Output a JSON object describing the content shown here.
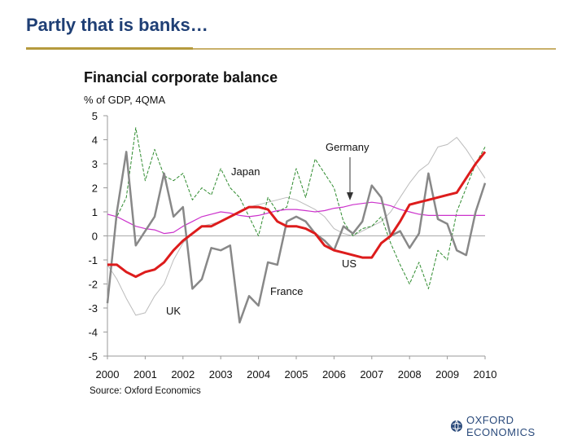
{
  "slide": {
    "title": "Partly that is banks…",
    "logo_text": "OXFORD ECONOMICS"
  },
  "colors": {
    "title": "#1f3f75",
    "rule": "#b59a3e",
    "us": "#dd1c1c",
    "japan": "#2e8b2e",
    "germany": "#cc33cc",
    "uk": "#bbbbbb",
    "france": "#888888"
  },
  "chart_data": {
    "type": "line",
    "title": "Financial corporate balance",
    "subtitle": "% of GDP, 4QMA",
    "source": "Source: Oxford Economics",
    "xlabel": "",
    "ylabel": "",
    "xlim": [
      2000,
      2010
    ],
    "ylim": [
      -5,
      5
    ],
    "x_ticks": [
      "2000",
      "2001",
      "2002",
      "2003",
      "2004",
      "2005",
      "2006",
      "2007",
      "2008",
      "2009",
      "2010"
    ],
    "y_ticks": [
      "5",
      "4",
      "3",
      "2",
      "1",
      "0",
      "-1",
      "-2",
      "-3",
      "-4",
      "-5"
    ],
    "legend": "inline labels",
    "grid": false,
    "series": [
      {
        "name": "UK",
        "color": "#bbbbbb",
        "x": [
          2000.0,
          2000.25,
          2000.5,
          2000.75,
          2001.0,
          2001.25,
          2001.5,
          2001.75,
          2002.0,
          2002.25,
          2002.5,
          2002.75,
          2003.0,
          2003.25,
          2003.5,
          2003.75,
          2004.0,
          2004.25,
          2004.5,
          2004.75,
          2005.0,
          2005.25,
          2005.5,
          2005.75,
          2006.0,
          2006.25,
          2006.5,
          2006.75,
          2007.0,
          2007.25,
          2007.5,
          2007.75,
          2008.0,
          2008.25,
          2008.5,
          2008.75,
          2009.0,
          2009.25,
          2009.5,
          2009.75,
          2010.0
        ],
        "y": [
          -1.2,
          -1.8,
          -2.6,
          -3.3,
          -3.2,
          -2.5,
          -2.0,
          -1.0,
          -0.3,
          0.1,
          0.4,
          0.5,
          0.6,
          0.8,
          1.0,
          1.2,
          1.3,
          1.4,
          1.5,
          1.6,
          1.5,
          1.3,
          1.1,
          0.8,
          0.3,
          0.1,
          0.0,
          0.2,
          0.4,
          0.6,
          1.0,
          1.6,
          2.2,
          2.7,
          3.0,
          3.7,
          3.8,
          4.1,
          3.6,
          3.0,
          2.4
        ]
      },
      {
        "name": "Japan",
        "color": "#2e8b2e",
        "x": [
          2000.0,
          2000.25,
          2000.5,
          2000.75,
          2001.0,
          2001.25,
          2001.5,
          2001.75,
          2002.0,
          2002.25,
          2002.5,
          2002.75,
          2003.0,
          2003.25,
          2003.5,
          2003.75,
          2004.0,
          2004.25,
          2004.5,
          2004.75,
          2005.0,
          2005.25,
          2005.5,
          2005.75,
          2006.0,
          2006.25,
          2006.5,
          2006.75,
          2007.0,
          2007.25,
          2007.5,
          2007.75,
          2008.0,
          2008.25,
          2008.5,
          2008.75,
          2009.0,
          2009.25,
          2009.5,
          2009.75,
          2010.0
        ],
        "y": [
          -2.8,
          0.8,
          1.6,
          4.5,
          2.3,
          3.6,
          2.5,
          2.3,
          2.6,
          1.5,
          2.0,
          1.7,
          2.8,
          2.0,
          1.6,
          0.8,
          0.0,
          1.6,
          1.0,
          1.2,
          2.8,
          1.6,
          3.2,
          2.6,
          2.0,
          0.6,
          0.0,
          0.3,
          0.4,
          0.8,
          -0.3,
          -1.2,
          -2.0,
          -1.1,
          -2.2,
          -0.6,
          -1.0,
          1.0,
          2.0,
          3.0,
          3.7
        ]
      },
      {
        "name": "Germany",
        "color": "#cc33cc",
        "x": [
          2000.0,
          2000.25,
          2000.5,
          2000.75,
          2001.0,
          2001.25,
          2001.5,
          2001.75,
          2002.0,
          2002.25,
          2002.5,
          2002.75,
          2003.0,
          2003.25,
          2003.5,
          2003.75,
          2004.0,
          2004.25,
          2004.5,
          2004.75,
          2005.0,
          2005.25,
          2005.5,
          2005.75,
          2006.0,
          2006.25,
          2006.5,
          2006.75,
          2007.0,
          2007.25,
          2007.5,
          2007.75,
          2008.0,
          2008.25,
          2008.5,
          2008.75,
          2009.0,
          2009.25,
          2009.5,
          2009.75,
          2010.0
        ],
        "y": [
          0.9,
          0.8,
          0.6,
          0.4,
          0.3,
          0.25,
          0.1,
          0.15,
          0.4,
          0.6,
          0.8,
          0.9,
          1.0,
          0.95,
          0.85,
          0.8,
          0.85,
          0.95,
          1.05,
          1.1,
          1.1,
          1.05,
          1.0,
          1.05,
          1.15,
          1.2,
          1.3,
          1.35,
          1.4,
          1.35,
          1.25,
          1.1,
          1.0,
          0.9,
          0.85,
          0.85,
          0.85,
          0.85,
          0.85,
          0.85,
          0.85
        ]
      },
      {
        "name": "France",
        "color": "#888888",
        "x": [
          2000.0,
          2000.25,
          2000.5,
          2000.75,
          2001.0,
          2001.25,
          2001.5,
          2001.75,
          2002.0,
          2002.25,
          2002.5,
          2002.75,
          2003.0,
          2003.25,
          2003.5,
          2003.75,
          2004.0,
          2004.25,
          2004.5,
          2004.75,
          2005.0,
          2005.25,
          2005.5,
          2005.75,
          2006.0,
          2006.25,
          2006.5,
          2006.75,
          2007.0,
          2007.25,
          2007.5,
          2007.75,
          2008.0,
          2008.25,
          2008.5,
          2008.75,
          2009.0,
          2009.25,
          2009.5,
          2009.75,
          2010.0
        ],
        "y": [
          -2.8,
          1.0,
          3.5,
          -0.4,
          0.2,
          0.8,
          2.6,
          0.8,
          1.2,
          -2.2,
          -1.8,
          -0.5,
          -0.6,
          -0.4,
          -3.6,
          -2.5,
          -2.9,
          -1.1,
          -1.2,
          0.6,
          0.8,
          0.6,
          0.1,
          -0.2,
          -0.6,
          0.4,
          0.1,
          0.6,
          2.1,
          1.6,
          0.0,
          0.2,
          -0.5,
          0.1,
          2.6,
          0.7,
          0.5,
          -0.6,
          -0.8,
          1.0,
          2.2
        ]
      },
      {
        "name": "US",
        "color": "#dd1c1c",
        "x": [
          2000.0,
          2000.25,
          2000.5,
          2000.75,
          2001.0,
          2001.25,
          2001.5,
          2001.75,
          2002.0,
          2002.25,
          2002.5,
          2002.75,
          2003.0,
          2003.25,
          2003.5,
          2003.75,
          2004.0,
          2004.25,
          2004.5,
          2004.75,
          2005.0,
          2005.25,
          2005.5,
          2005.75,
          2006.0,
          2006.25,
          2006.5,
          2006.75,
          2007.0,
          2007.25,
          2007.5,
          2007.75,
          2008.0,
          2008.25,
          2008.5,
          2008.75,
          2009.0,
          2009.25,
          2009.5,
          2009.75,
          2010.0
        ],
        "y": [
          -1.2,
          -1.2,
          -1.5,
          -1.7,
          -1.5,
          -1.4,
          -1.1,
          -0.6,
          -0.2,
          0.1,
          0.4,
          0.4,
          0.6,
          0.8,
          1.0,
          1.2,
          1.2,
          1.1,
          0.6,
          0.4,
          0.4,
          0.3,
          0.1,
          -0.4,
          -0.6,
          -0.7,
          -0.8,
          -0.9,
          -0.9,
          -0.3,
          0.0,
          0.6,
          1.3,
          1.4,
          1.5,
          1.6,
          1.7,
          1.8,
          2.4,
          3.0,
          3.5
        ]
      }
    ],
    "annotations": [
      {
        "text": "Germany",
        "points_to": "Germany",
        "arrow": true
      },
      {
        "text": "Japan",
        "points_to": "Japan",
        "arrow": false
      },
      {
        "text": "US",
        "points_to": "US",
        "arrow": false
      },
      {
        "text": "France",
        "points_to": "France",
        "arrow": false
      },
      {
        "text": "UK",
        "points_to": "UK",
        "arrow": false
      }
    ]
  }
}
